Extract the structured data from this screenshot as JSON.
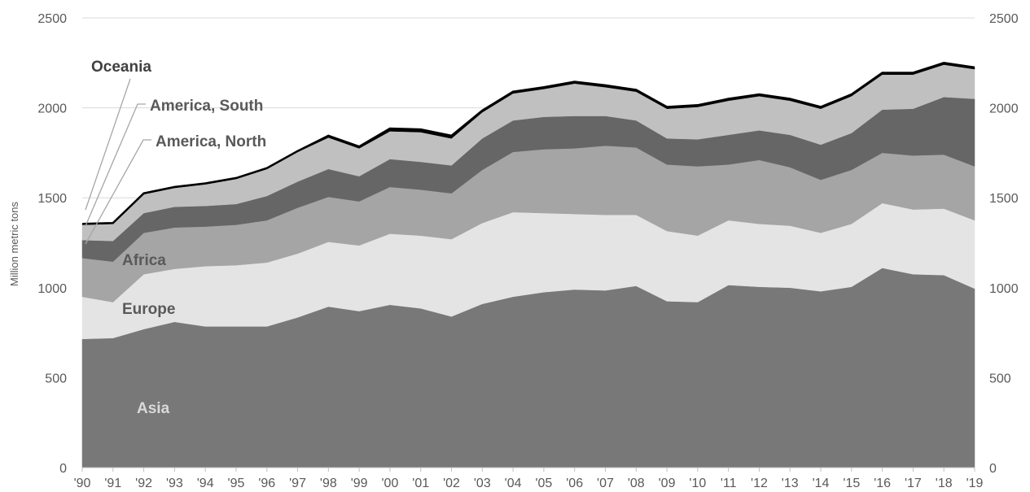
{
  "chart_data": {
    "type": "area",
    "stacked": true,
    "title": "",
    "xlabel": "",
    "ylabel": "Million metric tons",
    "ylim": [
      0,
      2500
    ],
    "yticks": [
      0,
      500,
      1000,
      1500,
      2000,
      2500
    ],
    "grid": true,
    "secondary_y_axis": true,
    "legend": "inline labels with leader lines",
    "x": [
      "'90",
      "'91",
      "'92",
      "'93",
      "'94",
      "'95",
      "'96",
      "'97",
      "'98",
      "'99",
      "'00",
      "'01",
      "'02",
      "'03",
      "'04",
      "'05",
      "'06",
      "'07",
      "'08",
      "'09",
      "'10",
      "'11",
      "'12",
      "'13",
      "'14",
      "'15",
      "'16",
      "'17",
      "'18",
      "'19"
    ],
    "series": [
      {
        "name": "Asia",
        "color": "#787878",
        "label_color": "#d9d9d9",
        "values": [
          715,
          720,
          770,
          810,
          785,
          785,
          785,
          835,
          895,
          870,
          905,
          885,
          840,
          910,
          950,
          975,
          990,
          985,
          1010,
          925,
          920,
          1015,
          1005,
          1000,
          980,
          1005,
          1110,
          1075,
          1070,
          995
        ]
      },
      {
        "name": "Europe",
        "color": "#e4e4e4",
        "label_color": "#595959",
        "values": [
          235,
          200,
          305,
          295,
          335,
          340,
          355,
          355,
          360,
          365,
          395,
          405,
          430,
          450,
          470,
          440,
          420,
          420,
          395,
          390,
          370,
          360,
          350,
          345,
          325,
          350,
          360,
          360,
          370,
          380
        ]
      },
      {
        "name": "Africa",
        "color": "#a5a5a5",
        "label_color": "#595959",
        "values": [
          215,
          225,
          230,
          230,
          220,
          225,
          235,
          255,
          250,
          245,
          260,
          255,
          255,
          295,
          335,
          355,
          365,
          385,
          375,
          370,
          385,
          310,
          355,
          325,
          295,
          300,
          280,
          300,
          300,
          300
        ]
      },
      {
        "name": "America, North",
        "color": "#666666",
        "label_color": "#595959",
        "values": [
          100,
          115,
          110,
          115,
          115,
          115,
          135,
          145,
          155,
          140,
          155,
          155,
          155,
          175,
          175,
          180,
          180,
          165,
          150,
          145,
          150,
          165,
          165,
          180,
          195,
          205,
          240,
          260,
          320,
          375
        ]
      },
      {
        "name": "America, South",
        "color": "#c0c0c0",
        "label_color": "#595959",
        "values": [
          85,
          95,
          105,
          105,
          120,
          140,
          150,
          165,
          175,
          155,
          155,
          165,
          150,
          145,
          150,
          155,
          180,
          160,
          160,
          165,
          180,
          190,
          190,
          190,
          200,
          205,
          195,
          190,
          180,
          165
        ]
      },
      {
        "name": "Oceania",
        "color": "#000000",
        "label_color": "#404040",
        "values": [
          5,
          5,
          5,
          5,
          5,
          5,
          5,
          5,
          10,
          10,
          15,
          15,
          15,
          10,
          10,
          10,
          10,
          10,
          10,
          10,
          10,
          10,
          10,
          10,
          10,
          10,
          10,
          10,
          10,
          10
        ]
      }
    ]
  }
}
